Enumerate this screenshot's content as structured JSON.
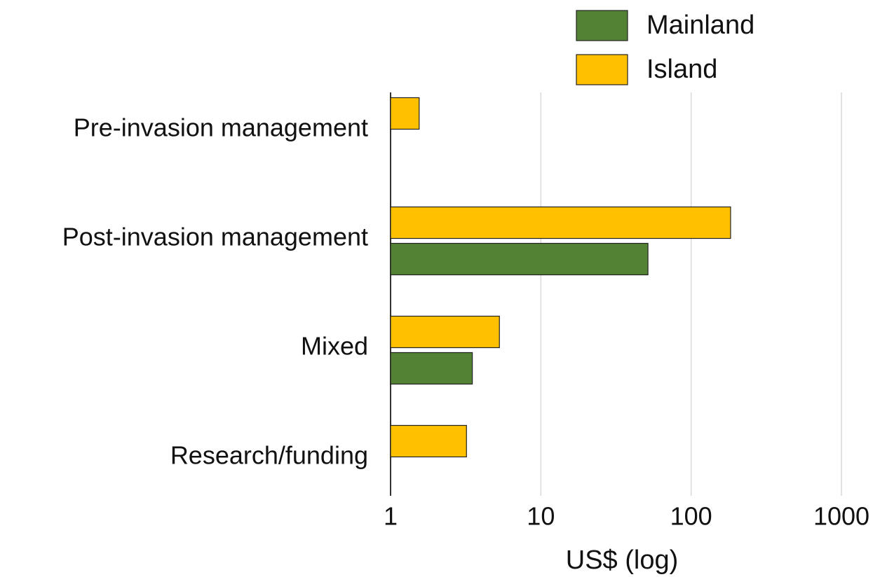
{
  "chart_data": {
    "type": "hbar",
    "orientation": "horizontal",
    "categories": [
      "Pre-invasion management",
      "Post-invasion management",
      "Mixed",
      "Research/funding"
    ],
    "series": [
      {
        "name": "Mainland",
        "color": "#548235",
        "values": [
          null,
          51.6,
          3.5,
          null
        ]
      },
      {
        "name": "Island",
        "color": "#ffc000",
        "values": [
          1.55,
          183,
          5.3,
          3.2
        ]
      }
    ],
    "xlabel": "US$ (log)",
    "xscale": "log",
    "xlim": [
      1,
      1000
    ],
    "xticks": [
      1,
      10,
      100,
      1000
    ],
    "grid": true,
    "legend": "top-right"
  }
}
